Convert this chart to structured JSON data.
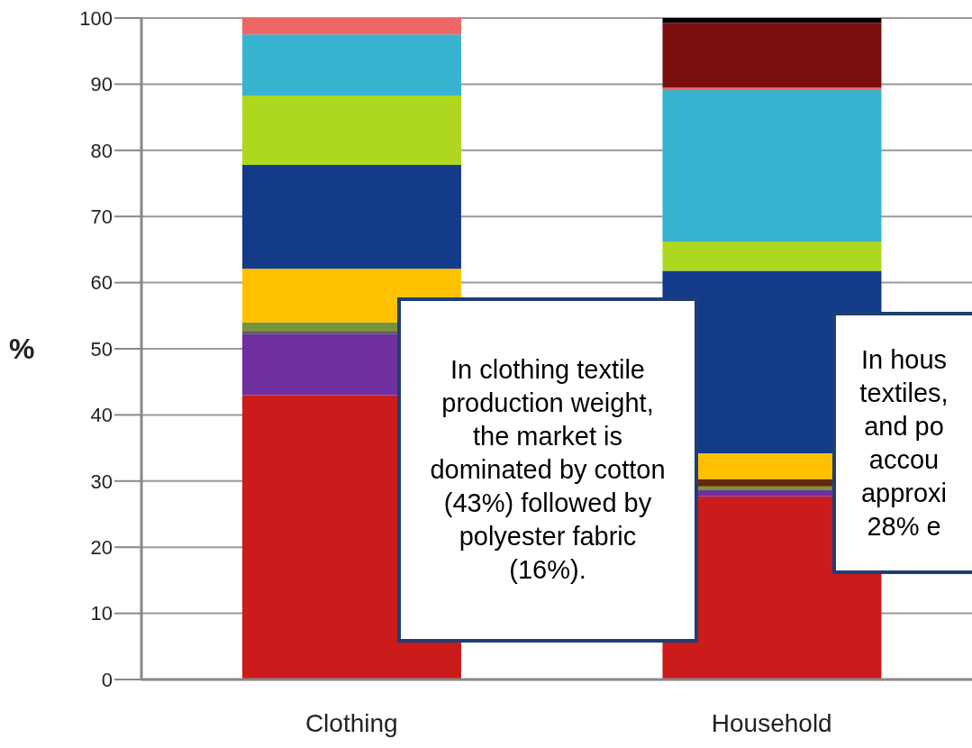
{
  "chart_data": {
    "type": "bar",
    "stacked": true,
    "ylabel": "%",
    "categories": [
      "Clothing",
      "Household"
    ],
    "series": [
      {
        "color": "#cc1b1b",
        "values": [
          43,
          27.7
        ]
      },
      {
        "color": "#7030a0",
        "values": [
          9.2,
          0.9
        ]
      },
      {
        "color": "#5a5a5a",
        "values": [
          0.4,
          0
        ]
      },
      {
        "color": "#77933c",
        "values": [
          1.4,
          0.6
        ]
      },
      {
        "color": "#632a00",
        "values": [
          0,
          1.1
        ]
      },
      {
        "color": "#ffc000",
        "values": [
          8.1,
          3.9
        ]
      },
      {
        "color": "#143a8a",
        "values": [
          15.7,
          27.6
        ]
      },
      {
        "color": "#add81f",
        "values": [
          10.5,
          4.4
        ]
      },
      {
        "color": "#38b3cf",
        "values": [
          9.2,
          22.9
        ]
      },
      {
        "color": "#ee6666",
        "values": [
          2.5,
          0.4
        ]
      },
      {
        "color": "#7b110f",
        "values": [
          0,
          9.8
        ]
      },
      {
        "color": "#000000",
        "values": [
          0,
          0.7
        ]
      }
    ],
    "ylim": [
      0,
      100
    ],
    "yticks": [
      0,
      10,
      20,
      30,
      40,
      50,
      60,
      70,
      80,
      90,
      100
    ],
    "grid": "y",
    "annotations": [
      "In clothing textile production weight, the market is dominated by cotton (43%) followed by polyester fabric (16%).",
      "In hous\ntextiles,\nand po\naccou\napproxi\n28% e"
    ]
  }
}
